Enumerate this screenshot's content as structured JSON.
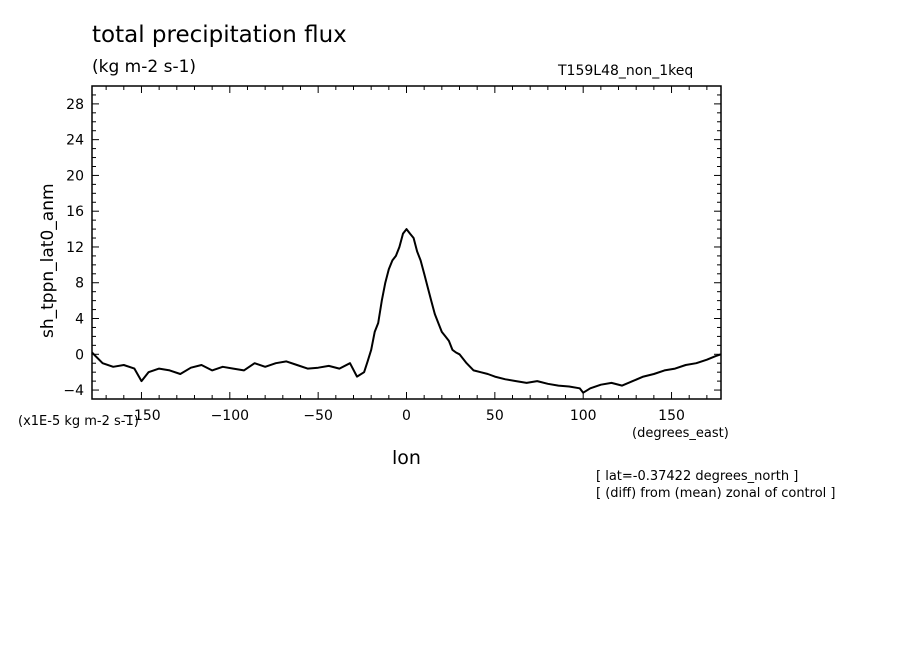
{
  "chart_data": {
    "type": "line",
    "title": "total precipitation flux",
    "subtitle": "(kg m-2 s-1)",
    "run_label": "T159L48_non_1keq",
    "xlabel": "lon",
    "x_units": "(degrees_east)",
    "ylabel": "sh_tppn_lat0_anm",
    "y_scale_note": "(x1E-5 kg m-2 s-1)",
    "notes": [
      "[ lat=-0.37422 degrees_north ]",
      "[ (diff) from (mean) zonal of control ]"
    ],
    "xlim": [
      -178,
      178
    ],
    "ylim": [
      -5,
      30
    ],
    "x_ticks": [
      -150,
      -100,
      -50,
      0,
      50,
      100,
      150
    ],
    "x_tick_labels": [
      "−150",
      "−100",
      "−50",
      "0",
      "50",
      "100",
      "150"
    ],
    "y_ticks": [
      -4,
      0,
      4,
      8,
      12,
      16,
      20,
      24,
      28
    ],
    "y_tick_labels": [
      "−4",
      "0",
      "4",
      "8",
      "12",
      "16",
      "20",
      "24",
      "28"
    ],
    "grid": false,
    "series": [
      {
        "x": [
          -178,
          -172,
          -166,
          -160,
          -154,
          -150,
          -146,
          -140,
          -134,
          -128,
          -122,
          -116,
          -110,
          -104,
          -98,
          -92,
          -86,
          -80,
          -74,
          -68,
          -62,
          -56,
          -50,
          -44,
          -38,
          -32,
          -28,
          -24,
          -22,
          -20,
          -18,
          -16,
          -14,
          -12,
          -10,
          -8,
          -6,
          -4,
          -2,
          0,
          2,
          4,
          6,
          8,
          10,
          12,
          14,
          16,
          18,
          20,
          22,
          24,
          26,
          28,
          30,
          34,
          38,
          42,
          46,
          50,
          56,
          62,
          68,
          74,
          80,
          86,
          92,
          98,
          100,
          104,
          110,
          116,
          122,
          128,
          134,
          140,
          146,
          152,
          158,
          164,
          170,
          175,
          178
        ],
        "y": [
          0.2,
          -1.0,
          -1.4,
          -1.2,
          -1.6,
          -3.0,
          -2.0,
          -1.6,
          -1.8,
          -2.2,
          -1.5,
          -1.2,
          -1.8,
          -1.4,
          -1.6,
          -1.8,
          -1.0,
          -1.4,
          -1.0,
          -0.8,
          -1.2,
          -1.6,
          -1.5,
          -1.3,
          -1.6,
          -1.0,
          -2.5,
          -2.0,
          -0.8,
          0.5,
          2.5,
          3.5,
          6.0,
          8.0,
          9.5,
          10.5,
          11.0,
          12.0,
          13.5,
          14.0,
          13.5,
          13.0,
          11.5,
          10.5,
          9.0,
          7.5,
          6.0,
          4.5,
          3.5,
          2.5,
          2.0,
          1.5,
          0.5,
          0.2,
          0.0,
          -1.0,
          -1.8,
          -2.0,
          -2.2,
          -2.5,
          -2.8,
          -3.0,
          -3.2,
          -3.0,
          -3.3,
          -3.5,
          -3.6,
          -3.8,
          -4.3,
          -3.8,
          -3.4,
          -3.2,
          -3.5,
          -3.0,
          -2.5,
          -2.2,
          -1.8,
          -1.6,
          -1.2,
          -1.0,
          -0.6,
          -0.2,
          0.0
        ]
      }
    ]
  }
}
